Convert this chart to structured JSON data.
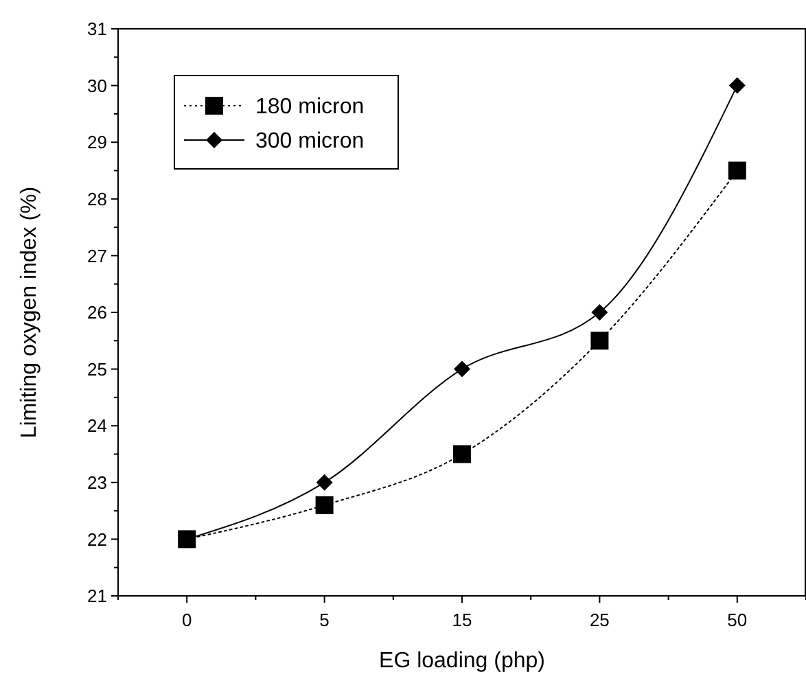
{
  "chart_data": {
    "type": "line",
    "xlabel": "EG loading (php)",
    "ylabel": "Limiting oxygen index (%)",
    "categories": [
      "0",
      "5",
      "15",
      "25",
      "50"
    ],
    "ylim": [
      21,
      31
    ],
    "yticks": [
      21,
      22,
      23,
      24,
      25,
      26,
      27,
      28,
      29,
      30,
      31
    ],
    "legend": "top left",
    "grid": false,
    "series": [
      {
        "name": "180 micron",
        "color": "#000000",
        "marker": "square",
        "line_style": "dotted",
        "values": [
          22,
          22.6,
          23.5,
          25.5,
          28.5
        ]
      },
      {
        "name": "300 micron",
        "color": "#000000",
        "marker": "diamond",
        "line_style": "solid",
        "values": [
          22,
          23,
          25,
          26,
          30
        ]
      }
    ]
  }
}
